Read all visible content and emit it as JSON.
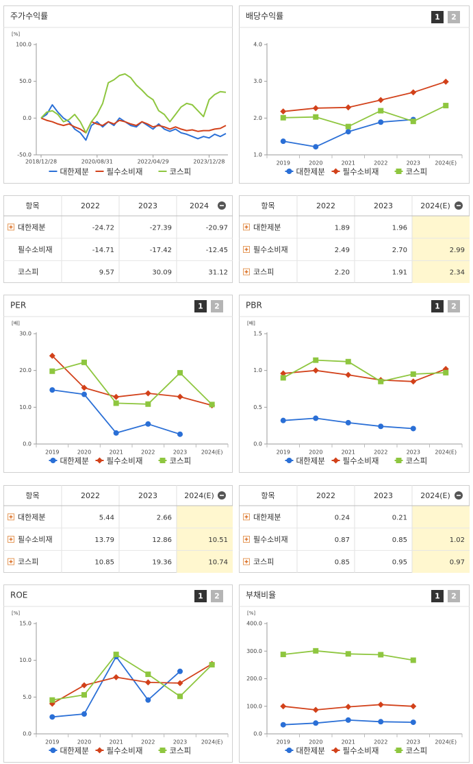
{
  "chart_data": [
    {
      "type": "line",
      "title": "주가수익률",
      "y_unit": "[%]",
      "x": [
        "2018/12/28",
        null,
        null,
        null,
        null,
        null,
        null,
        null,
        null,
        null,
        "2020/08/31",
        null,
        null,
        null,
        null,
        null,
        null,
        null,
        null,
        null,
        "2022/04/29",
        null,
        null,
        null,
        null,
        null,
        null,
        null,
        null,
        null,
        "2023/12/28",
        null,
        null,
        null
      ],
      "ylim": [
        -50,
        100
      ],
      "yticks": [
        {
          "value": -50,
          "label": "-50.0"
        },
        {
          "value": 0,
          "label": "0.0"
        },
        {
          "value": 50,
          "label": "50.0"
        },
        {
          "value": 100,
          "label": "100.0"
        }
      ],
      "series": [
        {
          "name": "대한제분",
          "color": "#2a6fd6",
          "values": [
            0,
            5,
            18,
            8,
            0,
            -5,
            -15,
            -20,
            -30,
            -10,
            -5,
            -12,
            -5,
            -10,
            0,
            -5,
            -10,
            -12,
            -5,
            -10,
            -15,
            -8,
            -15,
            -18,
            -15,
            -20,
            -22,
            -25,
            -28,
            -25,
            -27,
            -22,
            -25,
            -21
          ]
        },
        {
          "name": "필수소비재",
          "color": "#d2411a",
          "values": [
            0,
            -3,
            -5,
            -8,
            -10,
            -8,
            -12,
            -15,
            -20,
            -5,
            -8,
            -10,
            -5,
            -8,
            -3,
            -5,
            -8,
            -10,
            -5,
            -8,
            -12,
            -10,
            -12,
            -15,
            -12,
            -15,
            -17,
            -16,
            -18,
            -17,
            -17,
            -15,
            -14,
            -10
          ]
        },
        {
          "name": "코스피",
          "color": "#8ec63f",
          "values": [
            0,
            8,
            10,
            5,
            -5,
            -2,
            5,
            -5,
            -20,
            -5,
            5,
            20,
            48,
            52,
            58,
            60,
            55,
            45,
            38,
            30,
            25,
            10,
            5,
            -5,
            5,
            15,
            20,
            18,
            10,
            2,
            25,
            32,
            36,
            35
          ]
        }
      ]
    },
    {
      "type": "line_markers",
      "title": "배당수익률",
      "tabs": [
        "1",
        "2"
      ],
      "y_unit": null,
      "categories": [
        "2019",
        "2020",
        "2021",
        "2022",
        "2023",
        "2024(E)"
      ],
      "ylim": [
        1,
        4
      ],
      "yticks": [
        {
          "value": 1,
          "label": "1.0"
        },
        {
          "value": 2,
          "label": "2.0"
        },
        {
          "value": 3,
          "label": "3.0"
        },
        {
          "value": 4,
          "label": "4.0"
        }
      ],
      "series": [
        {
          "name": "대한제분",
          "color": "#2a6fd6",
          "marker": "circle",
          "values": [
            1.37,
            1.22,
            1.63,
            1.89,
            1.96,
            null
          ]
        },
        {
          "name": "필수소비재",
          "color": "#d2411a",
          "marker": "diamond",
          "values": [
            2.18,
            2.27,
            2.29,
            2.49,
            2.7,
            2.99
          ]
        },
        {
          "name": "코스피",
          "color": "#8ec63f",
          "marker": "square",
          "values": [
            2.01,
            2.03,
            1.77,
            2.2,
            1.91,
            2.34
          ]
        }
      ]
    },
    {
      "type": "line_markers",
      "title": "PER",
      "tabs": [
        "1",
        "2"
      ],
      "y_unit": "[배]",
      "categories": [
        "2019",
        "2020",
        "2021",
        "2022",
        "2023",
        "2024(E)"
      ],
      "ylim": [
        0,
        30
      ],
      "yticks": [
        {
          "value": 0,
          "label": "0.0"
        },
        {
          "value": 10,
          "label": "10.0"
        },
        {
          "value": 20,
          "label": "20.0"
        },
        {
          "value": 30,
          "label": "30.0"
        }
      ],
      "series": [
        {
          "name": "대한제분",
          "color": "#2a6fd6",
          "marker": "circle",
          "values": [
            14.7,
            13.5,
            3.0,
            5.44,
            2.66,
            null
          ]
        },
        {
          "name": "필수소비재",
          "color": "#d2411a",
          "marker": "diamond",
          "values": [
            24.0,
            15.3,
            12.8,
            13.79,
            12.86,
            10.51
          ]
        },
        {
          "name": "코스피",
          "color": "#8ec63f",
          "marker": "square",
          "values": [
            19.8,
            22.2,
            11.1,
            10.85,
            19.36,
            10.74
          ]
        }
      ]
    },
    {
      "type": "line_markers",
      "title": "PBR",
      "tabs": [
        "1",
        "2"
      ],
      "y_unit": "[배]",
      "categories": [
        "2019",
        "2020",
        "2021",
        "2022",
        "2023",
        "2024(E)"
      ],
      "ylim": [
        0,
        1.5
      ],
      "yticks": [
        {
          "value": 0,
          "label": "0.0"
        },
        0.5,
        {
          "value": 1,
          "label": "1.0"
        },
        1.5
      ],
      "series": [
        {
          "name": "대한제분",
          "color": "#2a6fd6",
          "marker": "circle",
          "values": [
            0.32,
            0.35,
            0.29,
            0.24,
            0.21,
            null
          ]
        },
        {
          "name": "필수소비재",
          "color": "#d2411a",
          "marker": "diamond",
          "values": [
            0.96,
            1.0,
            0.94,
            0.87,
            0.85,
            1.02
          ]
        },
        {
          "name": "코스피",
          "color": "#8ec63f",
          "marker": "square",
          "values": [
            0.9,
            1.14,
            1.12,
            0.85,
            0.95,
            0.97
          ]
        }
      ]
    },
    {
      "type": "line_markers",
      "title": "ROE",
      "tabs": [
        "1",
        "2"
      ],
      "y_unit": "[%]",
      "categories": [
        "2019",
        "2020",
        "2021",
        "2022",
        "2023",
        "2024(E)"
      ],
      "ylim": [
        0,
        15
      ],
      "yticks": [
        {
          "value": 0,
          "label": "0.0"
        },
        {
          "value": 5,
          "label": "5.0"
        },
        {
          "value": 10,
          "label": "10.0"
        },
        {
          "value": 15,
          "label": "15.0"
        }
      ],
      "series": [
        {
          "name": "대한제분",
          "color": "#2a6fd6",
          "marker": "circle",
          "values": [
            2.3,
            2.7,
            10.5,
            4.6,
            8.5,
            null
          ]
        },
        {
          "name": "필수소비재",
          "color": "#d2411a",
          "marker": "diamond",
          "values": [
            4.1,
            6.6,
            7.7,
            7.0,
            6.9,
            9.5
          ]
        },
        {
          "name": "코스피",
          "color": "#8ec63f",
          "marker": "square",
          "values": [
            4.6,
            5.3,
            10.8,
            8.1,
            5.1,
            9.4
          ]
        }
      ]
    },
    {
      "type": "line_markers",
      "title": "부채비율",
      "tabs": [
        "1",
        "2"
      ],
      "y_unit": "[%]",
      "categories": [
        "2019",
        "2020",
        "2021",
        "2022",
        "2023",
        "2024(E)"
      ],
      "ylim": [
        0,
        400
      ],
      "yticks": [
        {
          "value": 0,
          "label": "0.0"
        },
        {
          "value": 100,
          "label": "100.0"
        },
        {
          "value": 200,
          "label": "200.0"
        },
        {
          "value": 300,
          "label": "300.0"
        },
        {
          "value": 400,
          "label": "400.0"
        }
      ],
      "series": [
        {
          "name": "대한제분",
          "color": "#2a6fd6",
          "marker": "circle",
          "values": [
            33,
            39,
            50,
            44,
            42,
            null
          ]
        },
        {
          "name": "필수소비재",
          "color": "#d2411a",
          "marker": "diamond",
          "values": [
            100,
            87,
            98,
            106,
            100,
            null
          ]
        },
        {
          "name": "코스피",
          "color": "#8ec63f",
          "marker": "square",
          "values": [
            288,
            301,
            290,
            287,
            267,
            null
          ]
        }
      ]
    }
  ],
  "tables": [
    {
      "header": [
        "항목",
        "2022",
        "2023",
        "2024"
      ],
      "highlight_last": false,
      "plus": [
        true,
        false,
        false
      ],
      "rows": [
        [
          "대한제분",
          "-24.72",
          "-27.39",
          "-20.97"
        ],
        [
          "필수소비재",
          "-14.71",
          "-17.42",
          "-12.45"
        ],
        [
          "코스피",
          "9.57",
          "30.09",
          "31.12"
        ]
      ]
    },
    {
      "header": [
        "항목",
        "2022",
        "2023",
        "2024(E)"
      ],
      "highlight_last": true,
      "plus": [
        true,
        true,
        true
      ],
      "rows": [
        [
          "대한제분",
          "1.89",
          "1.96",
          null
        ],
        [
          "필수소비재",
          "2.49",
          "2.70",
          "2.99"
        ],
        [
          "코스피",
          "2.20",
          "1.91",
          "2.34"
        ]
      ]
    },
    {
      "header": [
        "항목",
        "2022",
        "2023",
        "2024(E)"
      ],
      "highlight_last": true,
      "plus": [
        true,
        true,
        true
      ],
      "rows": [
        [
          "대한제분",
          "5.44",
          "2.66",
          null
        ],
        [
          "필수소비재",
          "13.79",
          "12.86",
          "10.51"
        ],
        [
          "코스피",
          "10.85",
          "19.36",
          "10.74"
        ]
      ]
    },
    {
      "header": [
        "항목",
        "2022",
        "2023",
        "2024(E)"
      ],
      "highlight_last": true,
      "plus": [
        true,
        true,
        true
      ],
      "rows": [
        [
          "대한제분",
          "0.24",
          "0.21",
          null
        ],
        [
          "필수소비재",
          "0.87",
          "0.85",
          "1.02"
        ],
        [
          "코스피",
          "0.85",
          "0.95",
          "0.97"
        ]
      ]
    }
  ]
}
